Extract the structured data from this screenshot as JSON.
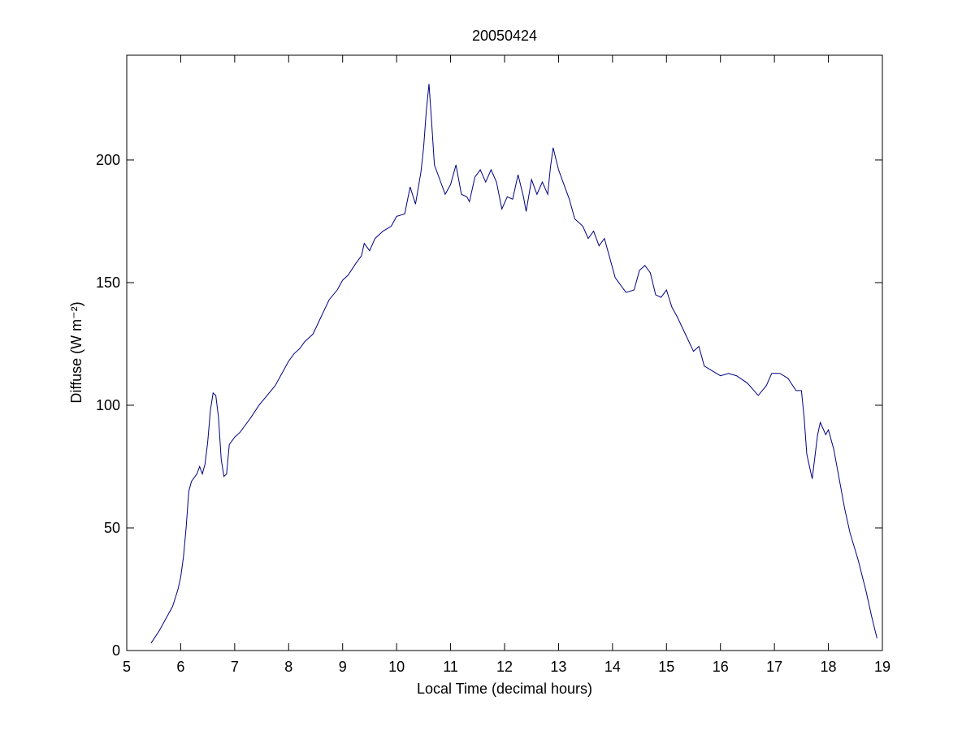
{
  "chart_data": {
    "type": "line",
    "title": "20050424",
    "xlabel": "Local Time (decimal hours)",
    "ylabel": "Diffuse (W m⁻²)",
    "x": [
      5.45,
      5.6,
      5.75,
      5.85,
      5.95,
      6.0,
      6.05,
      6.1,
      6.15,
      6.2,
      6.3,
      6.35,
      6.4,
      6.45,
      6.5,
      6.55,
      6.6,
      6.65,
      6.7,
      6.75,
      6.8,
      6.85,
      6.9,
      7.0,
      7.1,
      7.2,
      7.3,
      7.45,
      7.6,
      7.75,
      7.85,
      8.0,
      8.1,
      8.2,
      8.3,
      8.45,
      8.6,
      8.75,
      8.9,
      9.0,
      9.1,
      9.25,
      9.35,
      9.4,
      9.5,
      9.6,
      9.75,
      9.9,
      10.0,
      10.15,
      10.25,
      10.35,
      10.45,
      10.5,
      10.55,
      10.6,
      10.65,
      10.7,
      10.8,
      10.9,
      11.0,
      11.1,
      11.2,
      11.3,
      11.35,
      11.45,
      11.55,
      11.65,
      11.75,
      11.85,
      11.95,
      12.05,
      12.15,
      12.25,
      12.35,
      12.4,
      12.5,
      12.6,
      12.7,
      12.8,
      12.85,
      12.9,
      13.0,
      13.1,
      13.2,
      13.3,
      13.45,
      13.55,
      13.65,
      13.75,
      13.85,
      13.95,
      14.05,
      14.15,
      14.25,
      14.4,
      14.5,
      14.6,
      14.7,
      14.8,
      14.9,
      15.0,
      15.1,
      15.2,
      15.35,
      15.5,
      15.6,
      15.7,
      15.85,
      16.0,
      16.15,
      16.3,
      16.5,
      16.7,
      16.85,
      16.95,
      17.1,
      17.25,
      17.4,
      17.5,
      17.55,
      17.6,
      17.7,
      17.8,
      17.85,
      17.95,
      18.0,
      18.1,
      18.2,
      18.3,
      18.4,
      18.55,
      18.7,
      18.8,
      18.9
    ],
    "series": [
      {
        "color": "#000080",
        "values": [
          3,
          8,
          14,
          18,
          25,
          30,
          38,
          50,
          65,
          69,
          72,
          75,
          72,
          76,
          85,
          98,
          105,
          104,
          95,
          78,
          71,
          72,
          84,
          87,
          89,
          92,
          95,
          100,
          104,
          108,
          112,
          118,
          121,
          123,
          126,
          129,
          136,
          143,
          147,
          151,
          153,
          158,
          161,
          166,
          163,
          168,
          171,
          173,
          177,
          178,
          189,
          182,
          195,
          205,
          220,
          231,
          215,
          198,
          192,
          186,
          190,
          198,
          186,
          185,
          183,
          193,
          196,
          191,
          196,
          191,
          180,
          185,
          184,
          194,
          185,
          179,
          192,
          186,
          191,
          186,
          197,
          205,
          196,
          190,
          184,
          176,
          173,
          168,
          171,
          165,
          168,
          160,
          152,
          149,
          146,
          147,
          155,
          157,
          154,
          145,
          144,
          147,
          140,
          136,
          129,
          122,
          124,
          116,
          114,
          112,
          113,
          112,
          109,
          104,
          108,
          113,
          113,
          111,
          106,
          106,
          95,
          80,
          70,
          88,
          93,
          88,
          90,
          82,
          70,
          58,
          48,
          37,
          24,
          14,
          5
        ]
      }
    ],
    "xlim": [
      5,
      19
    ],
    "ylim": [
      0,
      242.7
    ],
    "xticks": [
      5,
      6,
      7,
      8,
      9,
      10,
      11,
      12,
      13,
      14,
      15,
      16,
      17,
      18,
      19
    ],
    "yticks": [
      0,
      50,
      100,
      150,
      200
    ]
  }
}
